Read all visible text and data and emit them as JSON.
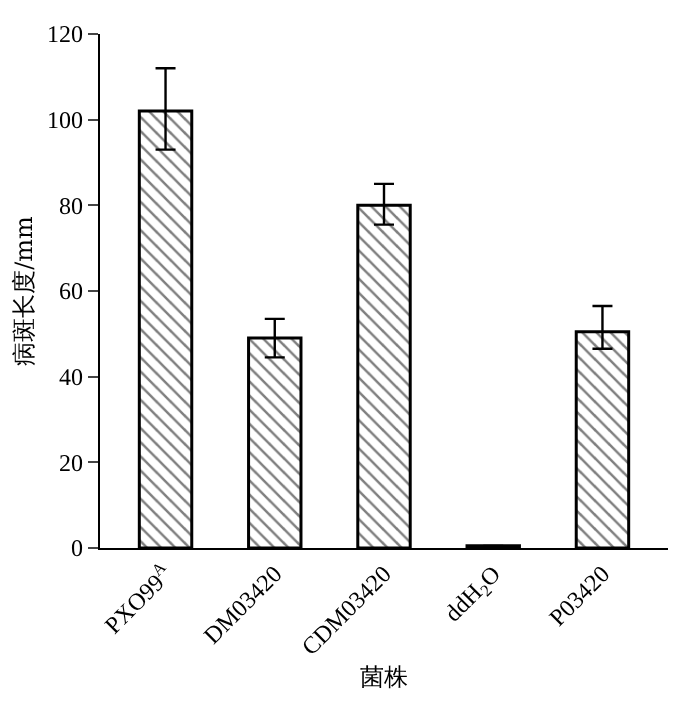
{
  "chart_data": {
    "type": "bar",
    "xlabel": "菌株",
    "ylabel": "病斑长度/mm",
    "categories": [
      "PXO99$^{A}$",
      "DM03420",
      "CDM03420",
      "ddH$_{2}$O",
      "P03420"
    ],
    "values": [
      102,
      49,
      80,
      0.5,
      50.5
    ],
    "errors": [
      [
        93,
        112
      ],
      [
        44.5,
        53.5
      ],
      [
        75.5,
        85
      ],
      null,
      [
        46.5,
        56.5
      ]
    ],
    "color": "#000000",
    "ylim": [
      0,
      120
    ],
    "yticks": [
      0,
      20,
      40,
      60,
      80,
      100,
      120
    ]
  }
}
